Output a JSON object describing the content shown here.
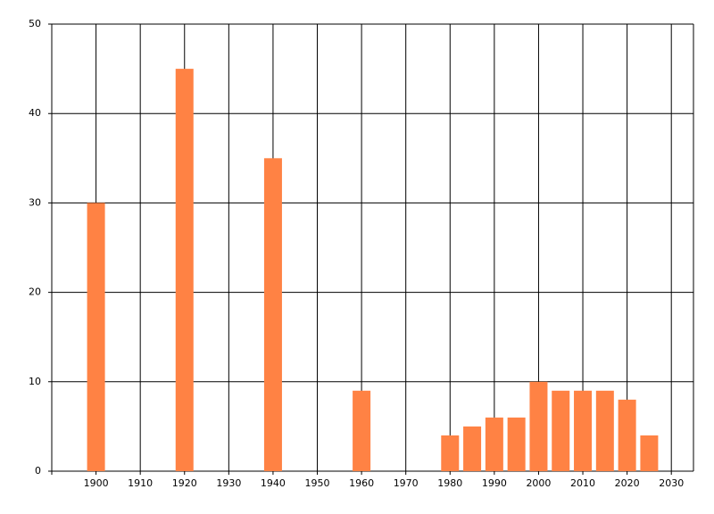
{
  "chart_data": {
    "type": "bar",
    "x": [
      1900,
      1920,
      1940,
      1960,
      1980,
      1985,
      1990,
      1995,
      2000,
      2005,
      2010,
      2015,
      2020,
      2025
    ],
    "values": [
      30,
      45,
      35,
      9,
      4,
      5,
      6,
      6,
      10,
      9,
      9,
      9,
      8,
      4
    ],
    "color": "#ff8244",
    "xlim": [
      1890,
      2035
    ],
    "xticks": [
      1900,
      1910,
      1920,
      1930,
      1940,
      1950,
      1960,
      1970,
      1980,
      1990,
      2000,
      2010,
      2020,
      2030
    ],
    "ylim": [
      0,
      50
    ],
    "yticks": [
      0,
      10,
      20,
      30,
      40,
      50
    ],
    "grid": true
  }
}
